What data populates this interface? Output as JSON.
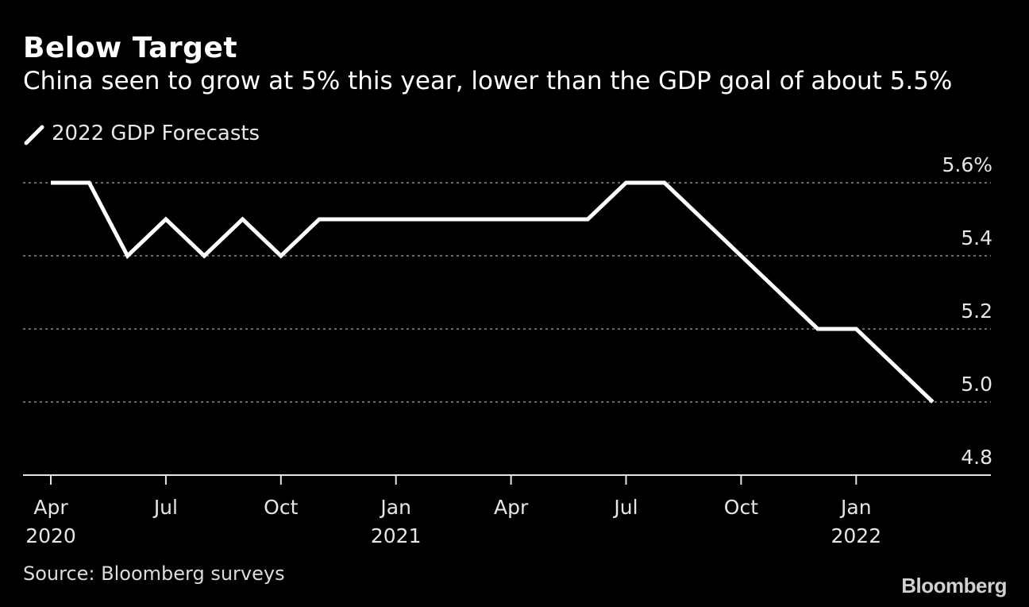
{
  "colors": {
    "background": "#000000",
    "line": "#ffffff",
    "grid": "#8a8a8a",
    "text": "#ffffff"
  },
  "header": {
    "title": "Below Target",
    "subtitle": "China seen to grow at 5% this year, lower than the GDP goal of about 5.5%"
  },
  "legend": {
    "label": "2022 GDP Forecasts"
  },
  "footer": {
    "source": "Source: Bloomberg surveys",
    "brand": "Bloomberg"
  },
  "chart_data": {
    "type": "line",
    "title": "Below Target",
    "subtitle": "China seen to grow at 5% this year, lower than the GDP goal of about 5.5%",
    "series": [
      {
        "name": "2022 GDP Forecasts",
        "x": [
          "2020-04",
          "2020-05",
          "2020-06",
          "2020-07",
          "2020-08",
          "2020-09",
          "2020-10",
          "2020-11",
          "2020-12",
          "2021-01",
          "2021-02",
          "2021-03",
          "2021-04",
          "2021-05",
          "2021-06",
          "2021-07",
          "2021-08",
          "2021-09",
          "2021-10",
          "2021-11",
          "2021-12",
          "2022-01",
          "2022-02",
          "2022-03"
        ],
        "values": [
          5.6,
          5.6,
          5.4,
          5.5,
          5.4,
          5.5,
          5.4,
          5.5,
          5.5,
          5.5,
          5.5,
          5.5,
          5.5,
          5.5,
          5.5,
          5.6,
          5.6,
          5.5,
          5.4,
          5.3,
          5.2,
          5.2,
          5.1,
          5.0
        ]
      }
    ],
    "ylim": [
      4.8,
      5.6
    ],
    "yticks": [
      {
        "value": 5.6,
        "label": "5.6%"
      },
      {
        "value": 5.4,
        "label": "5.4"
      },
      {
        "value": 5.2,
        "label": "5.2"
      },
      {
        "value": 5.0,
        "label": "5.0"
      },
      {
        "value": 4.8,
        "label": "4.8"
      }
    ],
    "xticks": [
      {
        "index": 0,
        "label": "Apr",
        "year": "2020"
      },
      {
        "index": 3,
        "label": "Jul",
        "year": ""
      },
      {
        "index": 6,
        "label": "Oct",
        "year": ""
      },
      {
        "index": 9,
        "label": "Jan",
        "year": "2021"
      },
      {
        "index": 12,
        "label": "Apr",
        "year": ""
      },
      {
        "index": 15,
        "label": "Jul",
        "year": ""
      },
      {
        "index": 18,
        "label": "Oct",
        "year": ""
      },
      {
        "index": 21,
        "label": "Jan",
        "year": "2022"
      }
    ],
    "xlabel": "",
    "ylabel": "",
    "grid": true,
    "legend_position": "top-left"
  }
}
